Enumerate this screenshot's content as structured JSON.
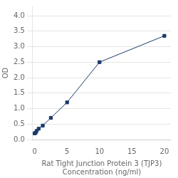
{
  "chart_data": {
    "type": "line",
    "xlabel": "Rat Tight Junction Protein 3 (TJP3)\nConcentration (ng/ml)",
    "ylabel": "OD",
    "x": [
      0,
      0.156,
      0.313,
      0.625,
      1.25,
      2.5,
      5,
      10,
      20
    ],
    "values": [
      0.2,
      0.22,
      0.28,
      0.35,
      0.45,
      0.7,
      1.2,
      2.5,
      3.35
    ],
    "color": "#1a3a6b",
    "marker": "square",
    "xlim": [
      -0.3,
      21
    ],
    "ylim": [
      0,
      4.3
    ],
    "xticks": [
      0,
      5,
      10,
      15,
      20
    ],
    "yticks": [
      {
        "value": 0,
        "label": "0.0"
      },
      {
        "value": 0.5,
        "label": "0.5"
      },
      {
        "value": 1,
        "label": "1.0"
      },
      {
        "value": 1.5,
        "label": "1.5"
      },
      {
        "value": 2,
        "label": "2.0"
      },
      {
        "value": 2.5,
        "label": "2.5"
      },
      {
        "value": 3,
        "label": "3.0"
      },
      {
        "value": 3.5,
        "label": "3.5"
      },
      {
        "value": 4,
        "label": "4.0"
      }
    ],
    "grid": "y"
  }
}
